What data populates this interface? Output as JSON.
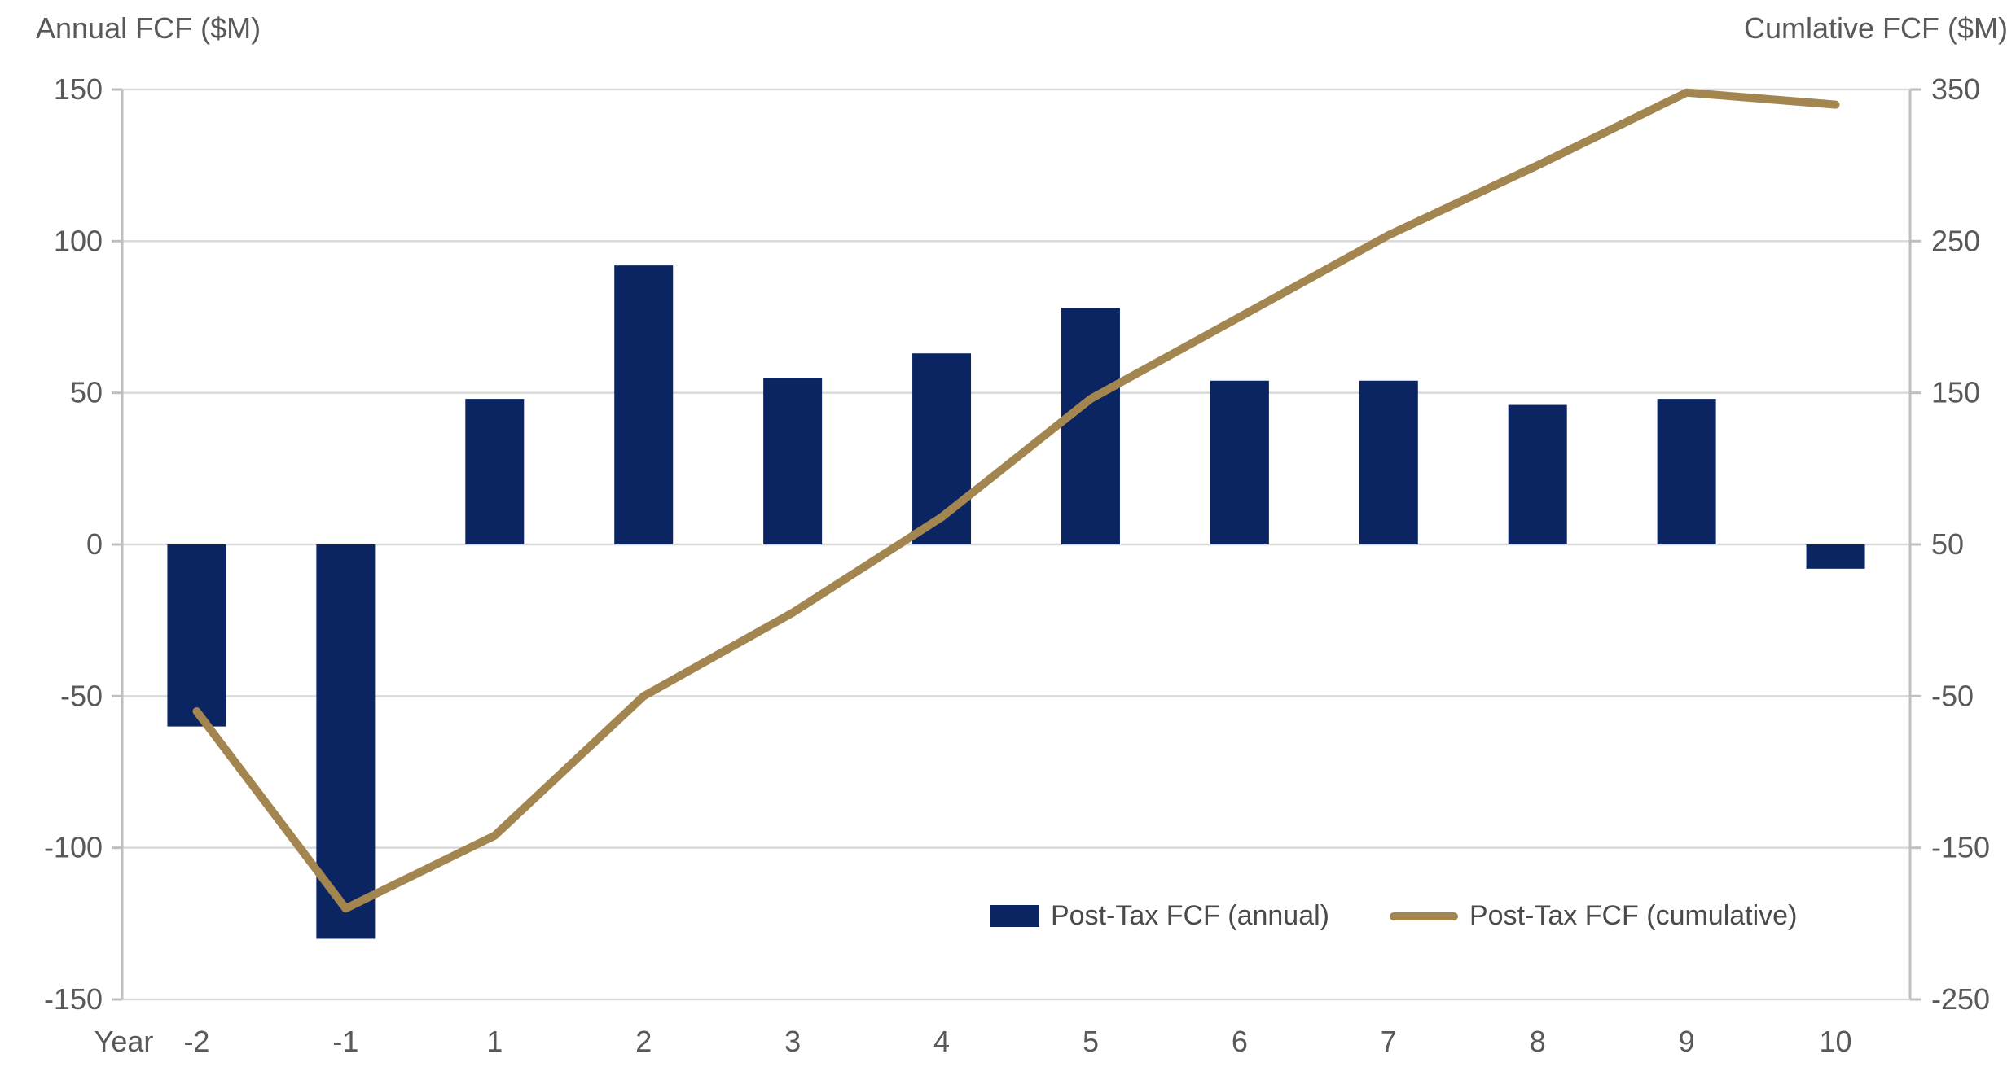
{
  "page": {
    "background": "#FFFFFF"
  },
  "chart_data": {
    "type": "bar",
    "subtype": "combo-bar-line-dual-axis",
    "categories": [
      "-2",
      "-1",
      "1",
      "2",
      "3",
      "4",
      "5",
      "6",
      "7",
      "8",
      "9",
      "10"
    ],
    "series": [
      {
        "name": "Post-Tax FCF (annual)",
        "type": "bar",
        "axis": "left",
        "color": "#0B2562",
        "values": [
          -60,
          -130,
          48,
          92,
          55,
          63,
          78,
          54,
          54,
          46,
          48,
          -8
        ]
      },
      {
        "name": "Post-Tax FCF (cumulative)",
        "type": "line",
        "axis": "right",
        "color": "#A3854F",
        "values": [
          -60,
          -190,
          -142,
          -50,
          5,
          68,
          146,
          200,
          254,
          300,
          348,
          340
        ]
      }
    ],
    "left_axis": {
      "title": "Annual FCF ($M)",
      "ticks": [
        150,
        100,
        50,
        0,
        -50,
        -100,
        -150
      ],
      "min": -150,
      "max": 150
    },
    "right_axis": {
      "title": "Cumlative FCF ($M)",
      "ticks": [
        350,
        250,
        150,
        50,
        -50,
        -150,
        -250
      ],
      "min": -250,
      "max": 350
    },
    "x_axis": {
      "label": "Year"
    },
    "legend": {
      "position": "inside-bottom-right",
      "items": [
        "Post-Tax FCF (annual)",
        "Post-Tax FCF (cumulative)"
      ]
    },
    "style": {
      "grid_on": true,
      "gridline_color": "#D9D9D9",
      "axis_line_color": "#BFBFBF",
      "tick_label_color": "#595959"
    }
  }
}
